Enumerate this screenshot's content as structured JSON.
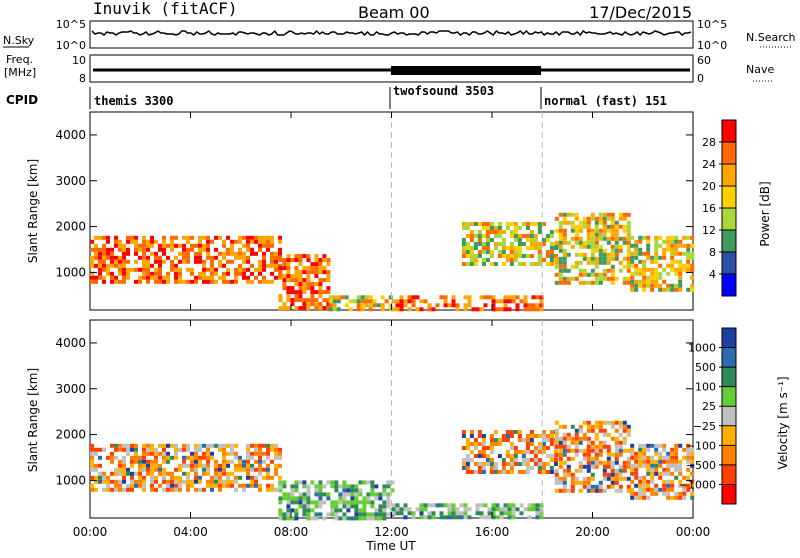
{
  "header": {
    "station": "Inuvik (fitACF)",
    "beam": "Beam 00",
    "date": "17/Dec/2015"
  },
  "top_panels": {
    "nsky_label": "N.Sky",
    "nsearch_label": "N.Search",
    "nsky_ticks": [
      "10^5",
      "10^0"
    ],
    "nsearch_ticks": [
      "10^5",
      "10^0"
    ],
    "freq_label_line1": "Freq.",
    "freq_label_line2": "[MHz]",
    "freq_ticks": [
      "10",
      "8"
    ],
    "nave_label": "Nave",
    "nave_ticks": [
      "60",
      "0"
    ],
    "cpid_label": "CPID",
    "cpid_segments": [
      {
        "name": "themis 3300",
        "start": 0,
        "end": 12
      },
      {
        "name": "twofsound 3503",
        "start": 12,
        "end": 18
      },
      {
        "name": "normal (fast) 151",
        "start": 18,
        "end": 24
      }
    ]
  },
  "chart_data": [
    {
      "type": "heatmap",
      "name": "power",
      "ylabel": "Slant Range [km]",
      "ylim": [
        180,
        4500
      ],
      "xlim": [
        0,
        24
      ],
      "yticks": [
        "1000",
        "2000",
        "3000",
        "4000"
      ],
      "colorbar_label": "Power [dB]",
      "colorbar_ticks": [
        "28",
        "24",
        "20",
        "16",
        "12",
        "8",
        "4"
      ],
      "colorbar_colors": [
        "#ff0000",
        "#ff6a00",
        "#ffa500",
        "#ffd000",
        "#a8d838",
        "#3d9a5c",
        "#2a4fa8",
        "#0000ff"
      ],
      "echo_regions": [
        {
          "x": [
            0.0,
            7.5
          ],
          "y": [
            800,
            1800
          ],
          "level": "high"
        },
        {
          "x": [
            7.5,
            9.5
          ],
          "y": [
            180,
            1400
          ],
          "level": "high"
        },
        {
          "x": [
            9.5,
            12.0
          ],
          "y": [
            180,
            500
          ],
          "level": "mid"
        },
        {
          "x": [
            12.0,
            18.0
          ],
          "y": [
            180,
            500
          ],
          "level": "high"
        },
        {
          "x": [
            14.8,
            18.5
          ],
          "y": [
            1200,
            2100
          ],
          "level": "mid"
        },
        {
          "x": [
            18.5,
            21.5
          ],
          "y": [
            800,
            2300
          ],
          "level": "mid"
        },
        {
          "x": [
            21.5,
            24.0
          ],
          "y": [
            600,
            1800
          ],
          "level": "mid"
        }
      ]
    },
    {
      "type": "heatmap",
      "name": "velocity",
      "ylabel": "Slant Range [km]",
      "ylim": [
        180,
        4500
      ],
      "xlim": [
        0,
        24
      ],
      "yticks": [
        "1000",
        "2000",
        "3000",
        "4000"
      ],
      "xticks": [
        "00:00",
        "04:00",
        "08:00",
        "12:00",
        "16:00",
        "20:00",
        "00:00"
      ],
      "xlabel": "Time UT",
      "colorbar_label": "Velocity [m s⁻¹]",
      "colorbar_ticks": [
        "1000",
        "500",
        "100",
        "25",
        "−25",
        "−100",
        "−500",
        "−1000"
      ],
      "colorbar_colors": [
        "#1f3fa0",
        "#2b6cb0",
        "#2e8b57",
        "#66cc33",
        "#c0c0c0",
        "#ffb000",
        "#ff8000",
        "#ff4000",
        "#ff0000"
      ],
      "echo_regions": [
        {
          "x": [
            0.0,
            7.5
          ],
          "y": [
            800,
            1800
          ],
          "level": "neg"
        },
        {
          "x": [
            7.5,
            12.0
          ],
          "y": [
            180,
            1000
          ],
          "level": "pos"
        },
        {
          "x": [
            12.0,
            18.0
          ],
          "y": [
            180,
            500
          ],
          "level": "pos"
        },
        {
          "x": [
            14.8,
            18.5
          ],
          "y": [
            1200,
            2100
          ],
          "level": "neg"
        },
        {
          "x": [
            18.5,
            21.5
          ],
          "y": [
            800,
            2300
          ],
          "level": "neg"
        },
        {
          "x": [
            21.5,
            24.0
          ],
          "y": [
            600,
            1800
          ],
          "level": "neg"
        }
      ]
    }
  ]
}
